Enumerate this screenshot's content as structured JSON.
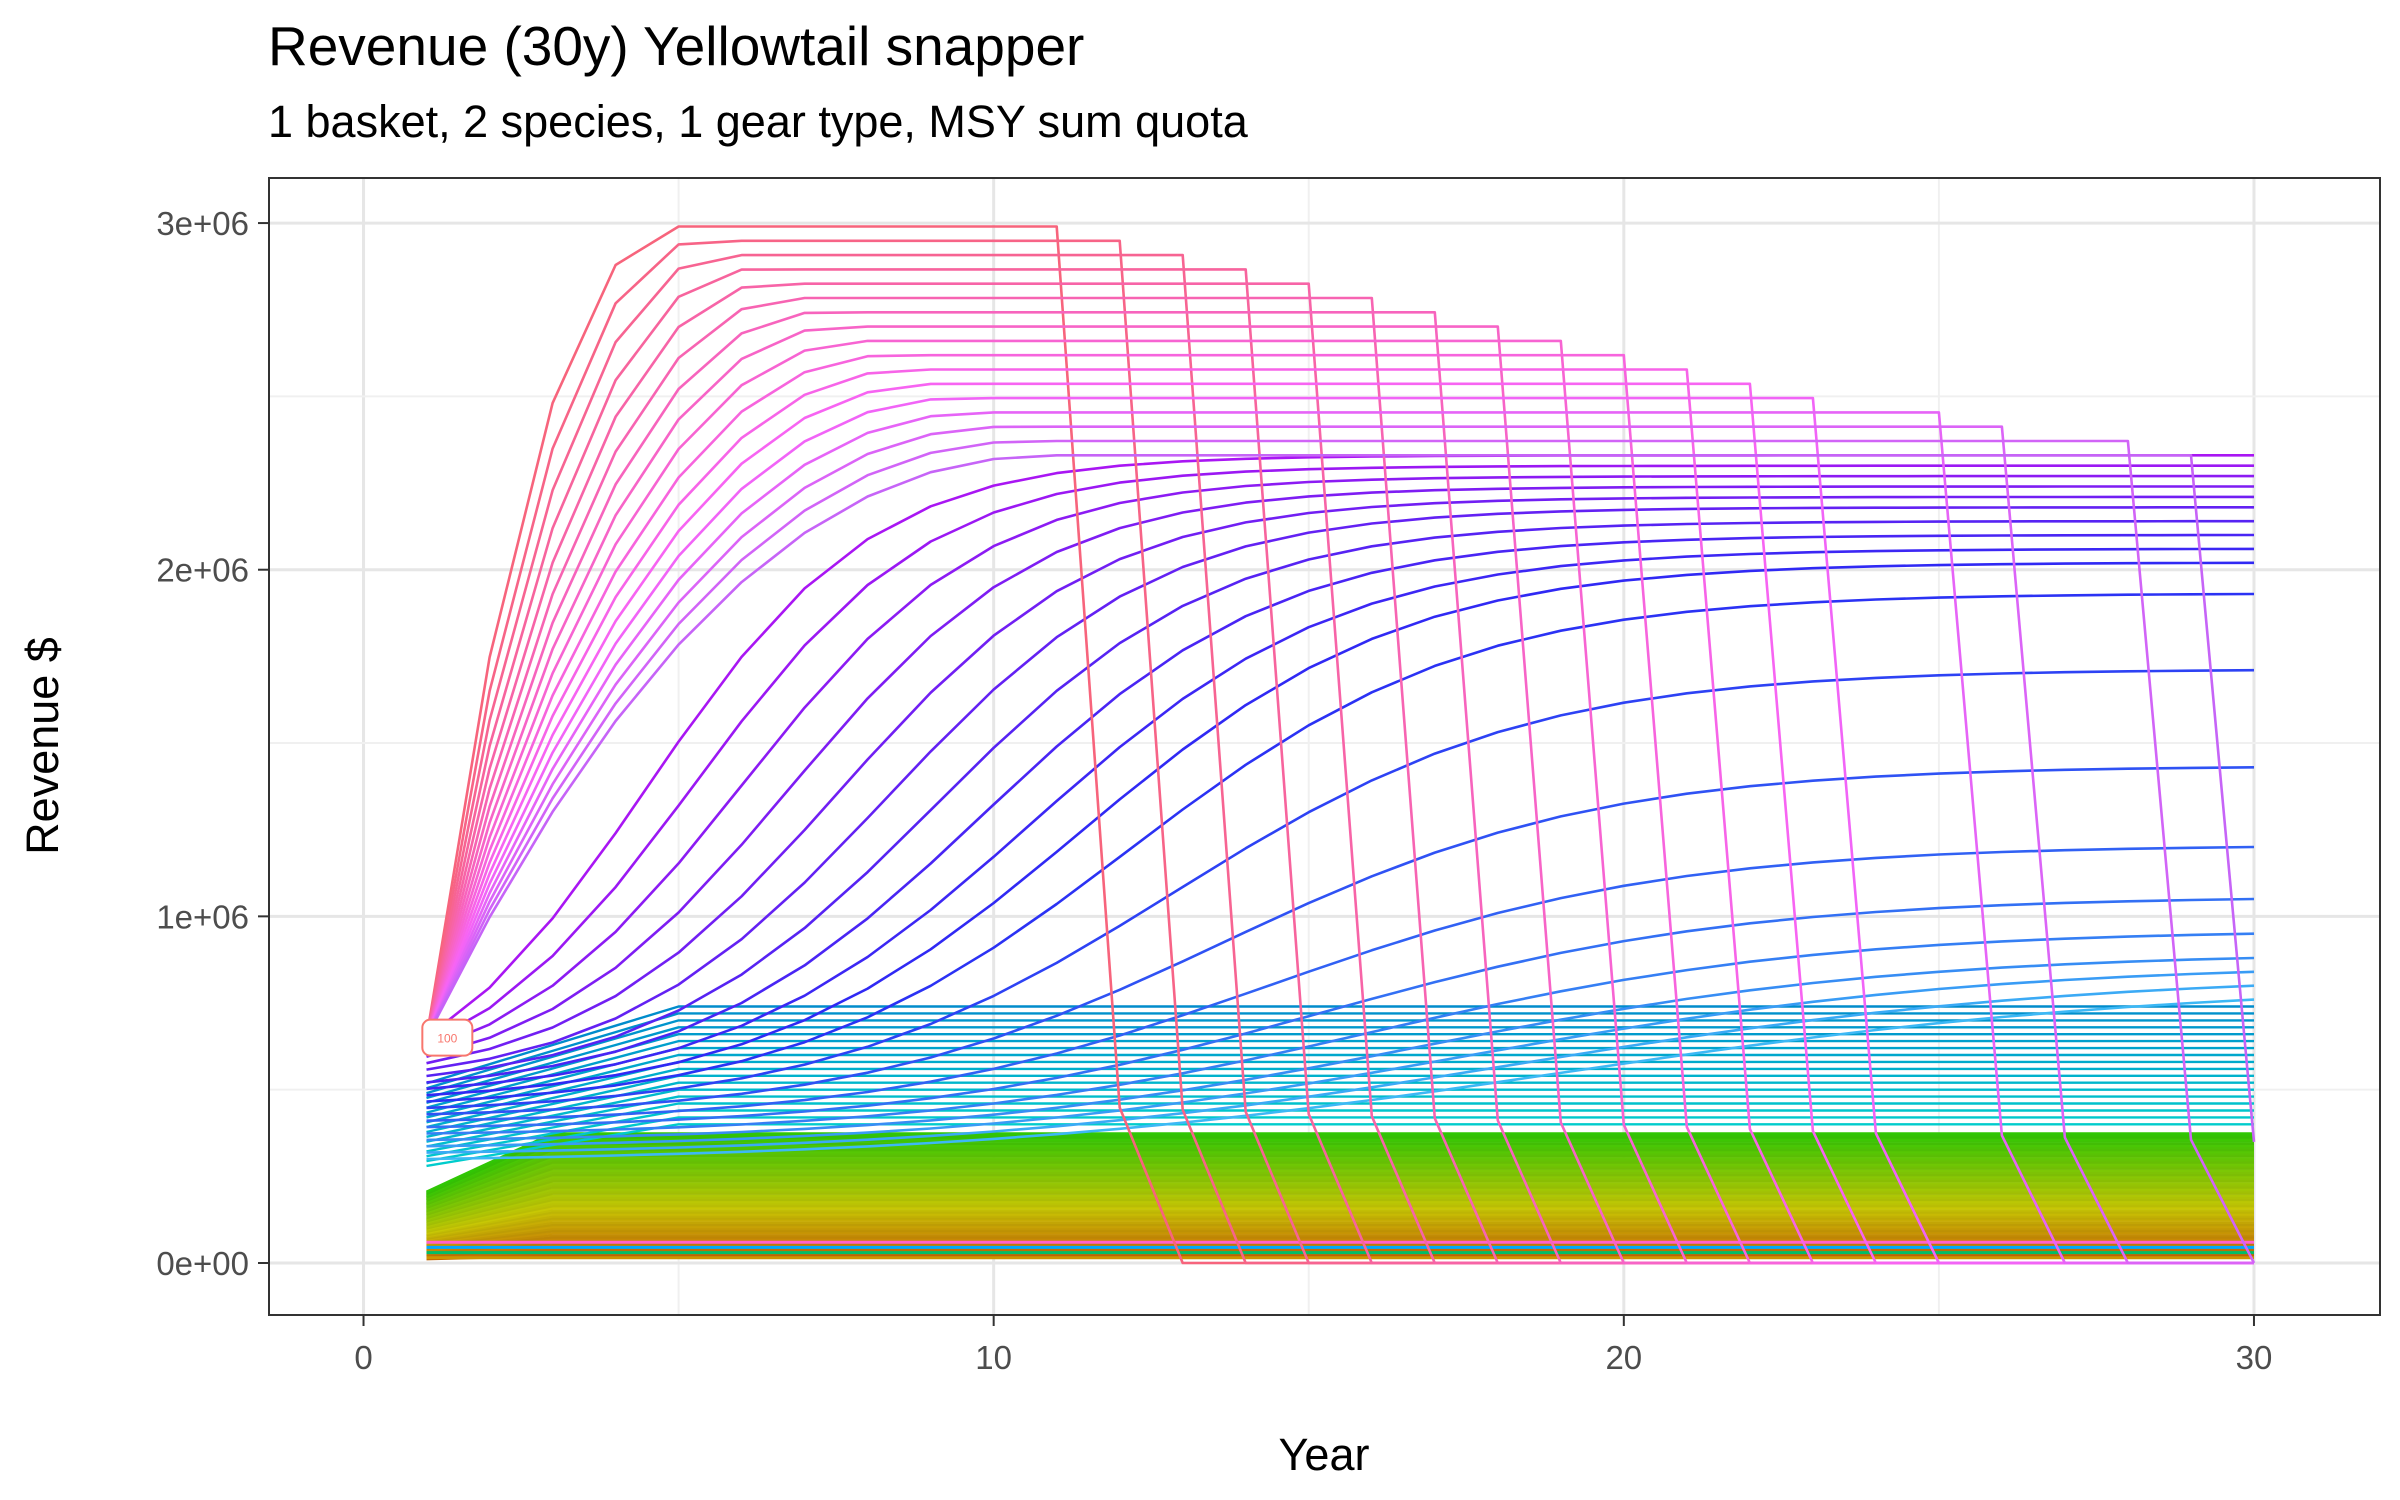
{
  "chart_data": {
    "type": "line",
    "title": "Revenue (30y) Yellowtail snapper",
    "subtitle": "1 basket, 2 species, 1 gear type, MSY sum quota",
    "xlabel": "Year",
    "ylabel": "Revenue $",
    "xlim": [
      -1.5,
      32
    ],
    "ylim": [
      -150000,
      3130000
    ],
    "x_ticks": [
      0,
      10,
      20,
      30
    ],
    "x_tick_labels": [
      "0",
      "10",
      "20",
      "30"
    ],
    "y_ticks": [
      0,
      1000000,
      2000000,
      3000000
    ],
    "y_tick_labels": [
      "0e+00",
      "1e+06",
      "2e+06",
      "3e+06"
    ],
    "grid": true,
    "legend": "none",
    "label_box_text": "100",
    "series_count": 100,
    "x_range": [
      1,
      30
    ],
    "series_groups": [
      {
        "description": "peaking runs that collapse to zero",
        "start_year1_approx": 650000,
        "peak_max": 2990000,
        "peak_year_first": 7,
        "collapse_years": [
          12,
          13,
          14,
          15,
          16,
          17,
          18,
          19,
          20,
          21,
          22,
          23,
          24,
          26,
          27,
          29,
          30
        ],
        "color_range": [
          "#F8766D",
          "#C77CFF"
        ]
      },
      {
        "description": "steady runs rising toward plateau",
        "year30_values": [
          2330000,
          2300000,
          2270000,
          2240000,
          2210000,
          2180000,
          2140000,
          2100000,
          2060000,
          2020000,
          1930000,
          1710000,
          1430000,
          1200000,
          1050000,
          950000,
          880000,
          840000,
          800000,
          760000
        ]
      },
      {
        "description": "low flat runs",
        "value_range": [
          0,
          700000
        ]
      }
    ],
    "hue_palette": [
      "#F8766D",
      "#CD9600",
      "#7CAE00",
      "#00BE67",
      "#00BFC4",
      "#00A9FF",
      "#C77CFF",
      "#FF61CC"
    ]
  }
}
